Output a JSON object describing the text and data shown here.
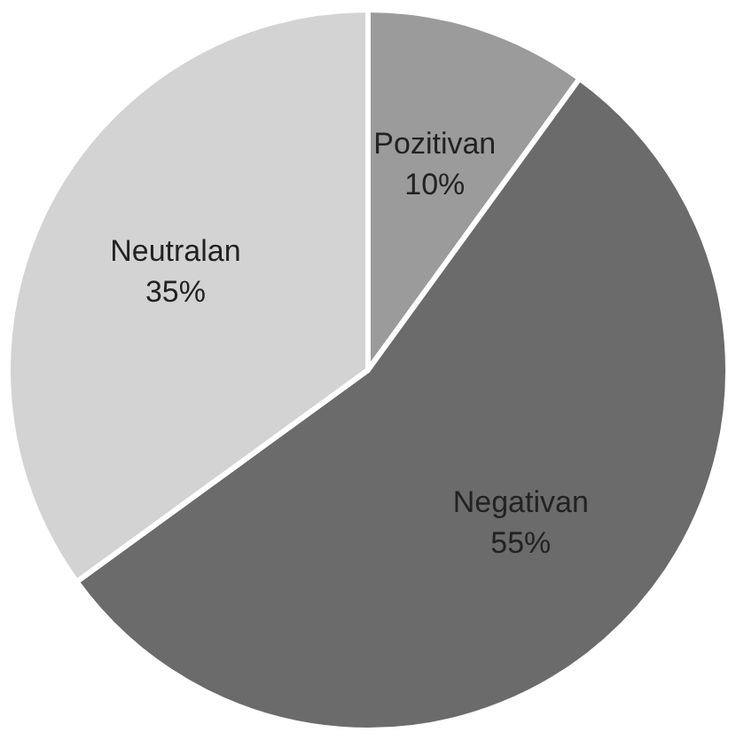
{
  "chart_data": {
    "type": "pie",
    "categories": [
      "Pozitivan",
      "Negativan",
      "Neutralan"
    ],
    "values": [
      10,
      55,
      35
    ],
    "colors": [
      "#9b9b9b",
      "#6b6b6b",
      "#d3d3d3"
    ],
    "value_labels": [
      "10%",
      "55%",
      "35%"
    ]
  }
}
